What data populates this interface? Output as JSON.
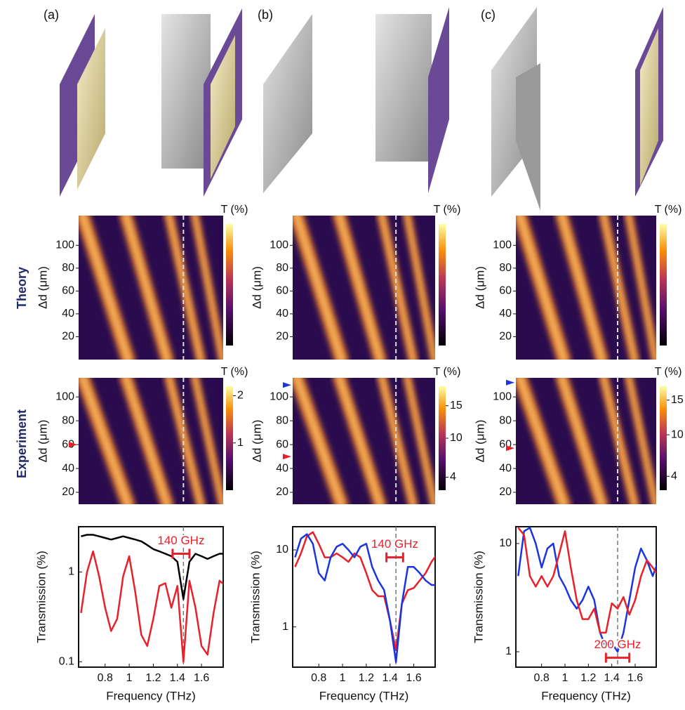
{
  "row_labels": {
    "theory": "Theory",
    "experiment": "Experiment"
  },
  "panels": [
    {
      "label": "(a)",
      "theory": {
        "ylabel": "Δd (μm)",
        "xlim": [
          0.58,
          1.78
        ],
        "ylim": [
          0,
          126
        ],
        "yticks": [
          20,
          40,
          60,
          80,
          100
        ],
        "colorbar_label": "T (%)",
        "marker_x": 1.45
      },
      "experiment": {
        "ylabel": "Δd (μm)",
        "xlim": [
          0.58,
          1.78
        ],
        "ylim": [
          10,
          116
        ],
        "yticks": [
          20,
          40,
          60,
          80,
          100
        ],
        "colorbar_label": "T (%)",
        "clim": [
          0,
          2.2
        ],
        "colorbar_ticks": [
          1,
          2
        ],
        "marker_x": 1.45,
        "arrows": [
          {
            "y": 60,
            "color": "#e8202a"
          }
        ]
      },
      "spectrum": {
        "type": "line",
        "xlabel": "Frequency (THz)",
        "ylabel": "Transmission (%)",
        "log_y": true,
        "xlim": [
          0.58,
          1.78
        ],
        "xticks": [
          0.8,
          1,
          1.2,
          1.4,
          1.6
        ],
        "ylim": [
          0.087,
          3.2
        ],
        "yticks": [
          0.1,
          1
        ],
        "marker_x": 1.45,
        "x": [
          0.6,
          0.65,
          0.7,
          0.75,
          0.8,
          0.85,
          0.9,
          0.95,
          1,
          1.05,
          1.1,
          1.15,
          1.2,
          1.25,
          1.3,
          1.35,
          1.4,
          1.45,
          1.5,
          1.55,
          1.6,
          1.65,
          1.7,
          1.75,
          1.8
        ],
        "series": [
          {
            "color": "#000000",
            "values": [
              2.5,
              2.6,
              2.6,
              2.5,
              2.4,
              2.3,
              2.4,
              2.5,
              2.4,
              2.3,
              2.2,
              2.0,
              1.8,
              1.7,
              1.6,
              1.5,
              1.3,
              0.5,
              1.3,
              1.6,
              1.5,
              1.4,
              1.5,
              1.6,
              1.6
            ]
          },
          {
            "color": "#e8202a",
            "values": [
              0.35,
              1.0,
              1.7,
              0.9,
              0.4,
              0.22,
              0.3,
              0.9,
              1.5,
              0.6,
              0.2,
              0.15,
              0.3,
              0.7,
              0.75,
              0.4,
              0.7,
              0.1,
              0.8,
              0.4,
              0.15,
              0.12,
              0.35,
              0.8,
              0.7
            ]
          }
        ],
        "annotation": {
          "text": "140 GHz",
          "x": [
            1.36,
            1.5
          ],
          "y": 1.6
        }
      }
    },
    {
      "label": "(b)",
      "theory": {
        "ylabel": "Δd (μm)",
        "xlim": [
          0.58,
          1.78
        ],
        "ylim": [
          0,
          126
        ],
        "yticks": [
          20,
          40,
          60,
          80,
          100
        ],
        "colorbar_label": "T (%)",
        "marker_x": 1.45
      },
      "experiment": {
        "ylabel": "Δd (μm)",
        "xlim": [
          0.58,
          1.78
        ],
        "ylim": [
          10,
          116
        ],
        "yticks": [
          20,
          40,
          60,
          80,
          100
        ],
        "colorbar_label": "T (%)",
        "clim": [
          2,
          18
        ],
        "colorbar_ticks": [
          4,
          10,
          15
        ],
        "marker_x": 1.45,
        "arrows": [
          {
            "y": 110,
            "color": "#1a35e0"
          },
          {
            "y": 50,
            "color": "#e8202a"
          }
        ]
      },
      "spectrum": {
        "type": "line",
        "xlabel": "Frequency (THz)",
        "ylabel": "Transmission (%)",
        "log_y": true,
        "xlim": [
          0.58,
          1.78
        ],
        "xticks": [
          0.8,
          1,
          1.2,
          1.4,
          1.6
        ],
        "ylim": [
          0.3,
          20
        ],
        "yticks": [
          1,
          10
        ],
        "marker_x": 1.45,
        "x": [
          0.6,
          0.65,
          0.7,
          0.75,
          0.8,
          0.85,
          0.9,
          0.95,
          1,
          1.05,
          1.1,
          1.15,
          1.2,
          1.25,
          1.3,
          1.35,
          1.4,
          1.45,
          1.5,
          1.55,
          1.6,
          1.65,
          1.7,
          1.75,
          1.8
        ],
        "series": [
          {
            "color": "#e8202a",
            "values": [
              6,
              9,
              15,
              17,
              12,
              8,
              8,
              9,
              8,
              7,
              9,
              8,
              5,
              3,
              2.5,
              2.5,
              1.2,
              0.5,
              2,
              3,
              3.2,
              4,
              5,
              7,
              9
            ]
          },
          {
            "color": "#1a35e0",
            "values": [
              8,
              14,
              16,
              12,
              5,
              4,
              8,
              11,
              12,
              10,
              8,
              11,
              12,
              6,
              4,
              3,
              1.2,
              0.35,
              2,
              6,
              6,
              5,
              4,
              3.5,
              3.5
            ]
          }
        ],
        "annotation": {
          "text": "140 GHz",
          "x": [
            1.37,
            1.51
          ],
          "y": 8
        }
      }
    },
    {
      "label": "(c)",
      "theory": {
        "ylabel": "Δd (μm)",
        "xlim": [
          0.58,
          1.78
        ],
        "ylim": [
          0,
          126
        ],
        "yticks": [
          20,
          40,
          60,
          80,
          100
        ],
        "colorbar_label": "T (%)",
        "marker_x": 1.45
      },
      "experiment": {
        "ylabel": "Δd (μm)",
        "xlim": [
          0.58,
          1.78
        ],
        "ylim": [
          10,
          116
        ],
        "yticks": [
          20,
          40,
          60,
          80,
          100
        ],
        "colorbar_label": "T (%)",
        "clim": [
          2,
          17
        ],
        "colorbar_ticks": [
          4,
          10,
          15
        ],
        "marker_x": 1.45,
        "arrows": [
          {
            "y": 112,
            "color": "#1a35e0"
          },
          {
            "y": 57,
            "color": "#e8202a"
          }
        ]
      },
      "spectrum": {
        "type": "line",
        "xlabel": "Frequency (THz)",
        "ylabel": "Transmission (%)",
        "log_y": true,
        "xlim": [
          0.58,
          1.78
        ],
        "xticks": [
          0.8,
          1,
          1.2,
          1.4,
          1.6
        ],
        "ylim": [
          0.72,
          14.3
        ],
        "yticks": [
          1,
          10
        ],
        "marker_x": 1.45,
        "x": [
          0.6,
          0.65,
          0.7,
          0.75,
          0.8,
          0.85,
          0.9,
          0.95,
          1,
          1.05,
          1.1,
          1.15,
          1.2,
          1.25,
          1.3,
          1.35,
          1.4,
          1.45,
          1.5,
          1.55,
          1.6,
          1.65,
          1.7,
          1.75,
          1.8
        ],
        "series": [
          {
            "color": "#1a35e0",
            "values": [
              5,
              13,
              14,
              10,
              6,
              9,
              10,
              5,
              4,
              3,
              2.5,
              3,
              4,
              3,
              1.5,
              1.1,
              1.2,
              1,
              1.5,
              3,
              6,
              9,
              7,
              5,
              7
            ]
          },
          {
            "color": "#e8202a",
            "values": [
              14,
              12,
              5,
              4,
              5,
              4,
              5,
              8,
              13,
              6,
              3,
              2,
              2,
              2.5,
              1.5,
              1.5,
              2.8,
              2.5,
              3.2,
              2.2,
              3,
              5,
              7,
              6,
              5
            ]
          }
        ],
        "annotation": {
          "text": "200 GHz",
          "x": [
            1.35,
            1.55
          ],
          "y": 0.88
        }
      }
    }
  ]
}
